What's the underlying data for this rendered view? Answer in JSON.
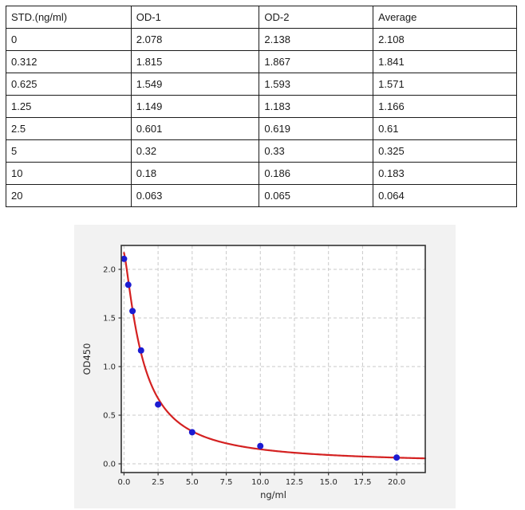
{
  "table": {
    "columns": [
      "STD.(ng/ml)",
      "OD-1",
      "OD-2",
      "Average"
    ],
    "col_widths_pct": [
      24.5,
      25.1,
      22.3,
      28.1
    ],
    "rows": [
      [
        "0",
        "2.078",
        "2.138",
        "2.108"
      ],
      [
        "0.312",
        "1.815",
        "1.867",
        "1.841"
      ],
      [
        "0.625",
        "1.549",
        "1.593",
        "1.571"
      ],
      [
        "1.25",
        "1.149",
        "1.183",
        "1.166"
      ],
      [
        "2.5",
        "0.601",
        "0.619",
        "0.61"
      ],
      [
        "5",
        "0.32",
        "0.33",
        "0.325"
      ],
      [
        "10",
        "0.18",
        "0.186",
        "0.183"
      ],
      [
        "20",
        "0.063",
        "0.065",
        "0.064"
      ]
    ]
  },
  "chart_data": {
    "type": "scatter",
    "title": "",
    "xlabel": "ng/ml",
    "ylabel": "OD450",
    "x": [
      0,
      0.312,
      0.625,
      1.25,
      2.5,
      5,
      10,
      20
    ],
    "y": [
      2.108,
      1.841,
      1.571,
      1.166,
      0.61,
      0.325,
      0.183,
      0.064
    ],
    "xticks": [
      0.0,
      2.5,
      5.0,
      7.5,
      10.0,
      12.5,
      15.0,
      17.5,
      20.0
    ],
    "yticks": [
      0.0,
      0.5,
      1.0,
      1.5,
      2.0
    ],
    "xlim": [
      -0.2,
      22.1
    ],
    "ylim": [
      -0.09,
      2.246
    ],
    "grid": true,
    "grid_style": "dashed",
    "legend": "none",
    "fit_curve": {
      "type": "4PL",
      "a": 2.17,
      "b": 1.3,
      "c": 1.35,
      "d": 0.0
    },
    "colors": {
      "point": "#1c1cd2",
      "curve": "#d42121",
      "figure_bg": "#f2f2f2",
      "plot_bg": "#ffffff",
      "grid": "#c9c9c9",
      "spine": "#333333",
      "tick_label": "#262626"
    }
  }
}
